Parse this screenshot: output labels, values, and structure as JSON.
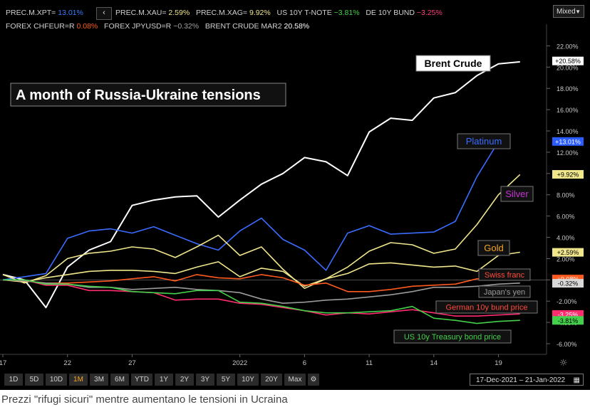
{
  "header": {
    "row1": [
      {
        "label": "PREC.M.XPT=",
        "value": "13.01%",
        "color": "#3b7bff"
      },
      {
        "label": "PREC.M.XAU=",
        "value": "2.59%",
        "color": "#f0e68c"
      },
      {
        "label": "PREC.M.XAG=",
        "value": "9.92%",
        "color": "#f0e68c"
      },
      {
        "label": "US 10Y T-NOTE",
        "value": "−3.81%",
        "color": "#43d04a"
      },
      {
        "label": "DE 10Y BUND",
        "value": "−3.25%",
        "color": "#ff3e7a"
      }
    ],
    "row2": [
      {
        "label": "FOREX CHFEUR=R",
        "value": "0.08%",
        "color": "#ff5a1f"
      },
      {
        "label": "FOREX JPYUSD=R",
        "value": "−0.32%",
        "color": "#a0a0a0"
      },
      {
        "label": "BRENT CRUDE MAR2",
        "value": "20.58%",
        "color": "#ffffff"
      }
    ],
    "nav_glyph": "‹",
    "scale_mode": "Mixed"
  },
  "toolbar": {
    "ranges": [
      "1D",
      "5D",
      "10D",
      "1M",
      "3M",
      "6M",
      "YTD",
      "1Y",
      "2Y",
      "3Y",
      "5Y",
      "10Y",
      "20Y",
      "Max"
    ],
    "active": "1M",
    "date_range": "17-Dec-2021  –  21-Jan-2022"
  },
  "caption": "Prezzi \"rifugi sicuri\" mentre aumentano le tensioni in Ucraina",
  "chart_data": {
    "type": "line",
    "title": "A month of Russia-Ukraine tensions",
    "x": [
      "17 Dec",
      "20 Dec",
      "21 Dec",
      "22 Dec",
      "23 Dec",
      "24 Dec",
      "27 Dec",
      "28 Dec",
      "29 Dec",
      "30 Dec",
      "31 Dec",
      "3 Jan",
      "4 Jan",
      "5 Jan",
      "6 Jan",
      "7 Jan",
      "10 Jan",
      "11 Jan",
      "12 Jan",
      "13 Jan",
      "14 Jan",
      "17 Jan",
      "18 Jan",
      "19 Jan",
      "20 Jan",
      "21 Jan"
    ],
    "x_tick_labels": [
      {
        "label": "17",
        "index": 0
      },
      {
        "label": "22",
        "index": 3
      },
      {
        "label": "27",
        "index": 6
      },
      {
        "label": "2022",
        "index": 11
      },
      {
        "label": "6",
        "index": 14
      },
      {
        "label": "11",
        "index": 17
      },
      {
        "label": "14",
        "index": 20
      },
      {
        "label": "19",
        "index": 23
      }
    ],
    "y_ticks": [
      -6,
      -4,
      -2,
      0,
      2,
      4,
      6,
      8,
      10,
      12,
      14,
      16,
      18,
      20,
      22
    ],
    "y_unit": "%",
    "ylim": [
      -7,
      23.5
    ],
    "grid": false,
    "series": [
      {
        "name": "Brent Crude",
        "color": "#ffffff",
        "last": "+20.58%",
        "values": [
          0.5,
          0,
          -2.6,
          1.2,
          2.8,
          3.6,
          7.0,
          7.5,
          7.8,
          7.9,
          5.9,
          7.5,
          9.0,
          10.0,
          11.5,
          11.1,
          9.8,
          13.9,
          15.2,
          15.0,
          17.1,
          17.6,
          19.2,
          20.3,
          20.5,
          null
        ],
        "label_box": true
      },
      {
        "name": "Platinum",
        "color": "#3b6cff",
        "last": "+13.01%",
        "values": [
          0,
          0.3,
          0.6,
          3.9,
          4.6,
          4.8,
          4.4,
          5.0,
          4.2,
          3.4,
          2.8,
          4.6,
          5.8,
          3.8,
          2.8,
          0.9,
          4.4,
          5.1,
          4.3,
          4.4,
          4.5,
          5.5,
          9.7,
          13.0,
          null,
          null
        ],
        "label_box": true
      },
      {
        "name": "Silver",
        "color": "#f0e68c",
        "label_color": "#c533d6",
        "last": "+9.92%",
        "values": [
          0.5,
          -0.3,
          0.4,
          2.0,
          2.5,
          2.7,
          3.1,
          2.9,
          2.1,
          3.1,
          4.2,
          2.3,
          3.1,
          1.0,
          -0.8,
          0.1,
          1.2,
          2.7,
          3.5,
          3.3,
          2.5,
          2.9,
          5.2,
          8.0,
          9.9,
          null
        ],
        "label_box": true
      },
      {
        "name": "Gold",
        "color": "#f0e68c",
        "label_color": "#f5a623",
        "last": "+2.59%",
        "values": [
          0,
          -0.2,
          0.2,
          0.5,
          0.8,
          0.9,
          0.9,
          0.8,
          0.6,
          1.2,
          1.7,
          0.3,
          1.1,
          0.8,
          -0.6,
          0.1,
          0.6,
          1.5,
          1.6,
          1.4,
          1.2,
          1.3,
          0.8,
          2.3,
          2.6,
          null
        ],
        "label_box": true
      },
      {
        "name": "Swiss franc",
        "color": "#ff5a1f",
        "label_color": "#ff4a3a",
        "last": "+0.08%",
        "values": [
          0,
          -0.1,
          -0.3,
          -0.3,
          -0.2,
          -0.1,
          0.1,
          0.3,
          -0.1,
          0.5,
          0.2,
          0.1,
          0.5,
          0.2,
          -0.5,
          -0.3,
          -1.1,
          -1.1,
          -0.9,
          -0.6,
          -0.5,
          -0.4,
          0.1,
          0.1,
          0.1,
          null
        ],
        "label_box": true
      },
      {
        "name": "Japan's yen",
        "color": "#9a9a9a",
        "last": "-0.32%",
        "values": [
          0,
          -0.1,
          -0.3,
          -0.4,
          -0.7,
          -0.7,
          -0.9,
          -0.8,
          -0.7,
          -0.9,
          -1.0,
          -1.2,
          -1.8,
          -2.2,
          -2.1,
          -1.9,
          -1.8,
          -1.6,
          -1.4,
          -1.1,
          -0.7,
          -0.7,
          -0.6,
          -0.4,
          -0.3,
          null
        ],
        "label_box": true
      },
      {
        "name": "German 10y bund price",
        "color": "#ff2d6f",
        "label_color": "#ff4a3a",
        "last": "-3.25%",
        "values": [
          0,
          0,
          -0.5,
          -0.5,
          -1.0,
          -1.0,
          -1.1,
          -1.2,
          -1.9,
          -1.8,
          -1.8,
          -2.2,
          -2.3,
          -2.6,
          -2.9,
          -3.3,
          -3.1,
          -3.2,
          -3.0,
          -2.8,
          -3.1,
          -3.4,
          -3.4,
          -3.3,
          -3.2,
          null
        ],
        "label_box": true
      },
      {
        "name": "US 10y Treasury bond price",
        "color": "#43d04a",
        "last": "-3.81%",
        "values": [
          0,
          0,
          -0.4,
          -0.4,
          -0.6,
          -0.7,
          -1.1,
          -1.2,
          -1.3,
          -1.0,
          -1.0,
          -2.1,
          -2.2,
          -2.5,
          -2.9,
          -3.1,
          -3.1,
          -3.0,
          -2.9,
          -2.5,
          -3.6,
          -3.8,
          -4.1,
          -3.9,
          -3.8,
          null
        ],
        "label_box": true
      }
    ]
  }
}
